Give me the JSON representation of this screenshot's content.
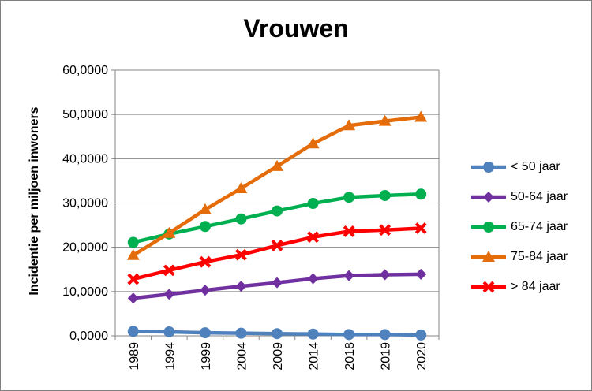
{
  "chart_data": {
    "type": "line",
    "title": "Vrouwen",
    "xlabel": "",
    "ylabel": "Incidentie per miljoen inwoners",
    "categories": [
      "1989",
      "1994",
      "1999",
      "2004",
      "2009",
      "2014",
      "2018",
      "2019",
      "2020"
    ],
    "ylim": [
      0,
      60
    ],
    "yticks": [
      "0,0000",
      "10,0000",
      "20,0000",
      "30,0000",
      "40,0000",
      "50,0000",
      "60,0000"
    ],
    "grid": true,
    "legend_position": "right",
    "series": [
      {
        "name": "< 50 jaar",
        "color": "#4f81bd",
        "marker": "circle",
        "values": [
          1.0,
          0.9,
          0.7,
          0.6,
          0.5,
          0.4,
          0.3,
          0.3,
          0.2
        ]
      },
      {
        "name": "50-64 jaar",
        "color": "#7030a0",
        "marker": "diamond",
        "values": [
          8.5,
          9.4,
          10.3,
          11.2,
          12.0,
          12.9,
          13.6,
          13.8,
          13.9
        ]
      },
      {
        "name": "65-74 jaar",
        "color": "#00b050",
        "marker": "circle",
        "values": [
          21.1,
          23.0,
          24.7,
          26.4,
          28.2,
          29.9,
          31.3,
          31.7,
          32.0
        ]
      },
      {
        "name": "75-84 jaar",
        "color": "#e46c0a",
        "marker": "triangle",
        "values": [
          18.2,
          23.2,
          28.5,
          33.3,
          38.3,
          43.4,
          47.5,
          48.5,
          49.4
        ]
      },
      {
        "name": "> 84 jaar",
        "color": "#ff0000",
        "marker": "x",
        "values": [
          12.8,
          14.8,
          16.7,
          18.3,
          20.4,
          22.3,
          23.6,
          23.9,
          24.3
        ]
      }
    ]
  }
}
